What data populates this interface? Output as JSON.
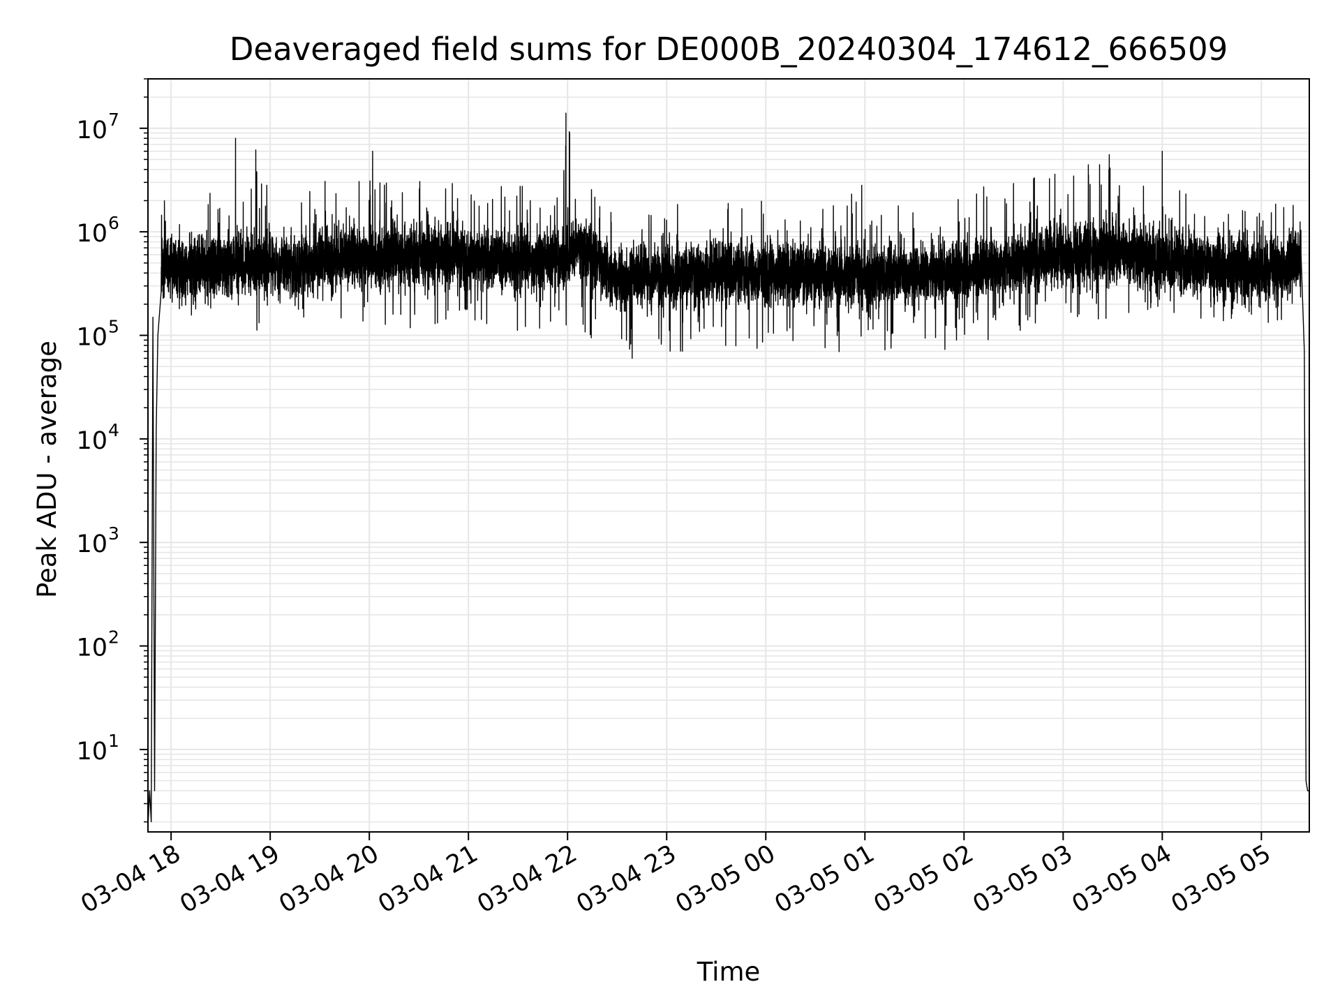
{
  "chart_data": {
    "type": "line",
    "title": "Deaveraged field sums for DE000B_20240304_174612_666509",
    "xlabel": "Time",
    "ylabel": "Peak ADU - average",
    "yscale": "log",
    "ylim": [
      1.6,
      30000000
    ],
    "xlim": [
      "2024-03-04 17:46",
      "2024-03-05 05:29"
    ],
    "grid": true,
    "grid_color": "#e6e6e6",
    "line_color": "#000000",
    "x_ticks": [
      "2024-03-04 18:00",
      "2024-03-04 19:00",
      "2024-03-04 20:00",
      "2024-03-04 21:00",
      "2024-03-04 22:00",
      "2024-03-04 23:00",
      "2024-03-05 00:00",
      "2024-03-05 01:00",
      "2024-03-05 02:00",
      "2024-03-05 03:00",
      "2024-03-05 04:00",
      "2024-03-05 05:00"
    ],
    "x_tick_labels": [
      "03-04 18",
      "03-04 19",
      "03-04 20",
      "03-04 21",
      "03-04 22",
      "03-04 23",
      "03-05 00",
      "03-05 01",
      "03-05 02",
      "03-05 03",
      "03-05 04",
      "03-05 05"
    ],
    "y_ticks": [
      10,
      100,
      1000,
      10000,
      100000,
      1000000,
      10000000
    ],
    "y_tick_labels": [
      {
        "base": "10",
        "exp": "1"
      },
      {
        "base": "10",
        "exp": "2"
      },
      {
        "base": "10",
        "exp": "3"
      },
      {
        "base": "10",
        "exp": "4"
      },
      {
        "base": "10",
        "exp": "5"
      },
      {
        "base": "10",
        "exp": "6"
      },
      {
        "base": "10",
        "exp": "7"
      }
    ],
    "series": [
      {
        "x": [
          "2024-03-04 17:46",
          "2024-03-04 17:47",
          "2024-03-04 17:48",
          "2024-03-04 17:49",
          "2024-03-04 17:50",
          "2024-03-04 17:51",
          "2024-03-04 17:52",
          "2024-03-04 17:54",
          "2024-03-04 18:00",
          "2024-03-04 18:10",
          "2024-03-04 18:20",
          "2024-03-04 18:30",
          "2024-03-04 18:40",
          "2024-03-04 18:50",
          "2024-03-04 19:00",
          "2024-03-04 19:20",
          "2024-03-04 19:40",
          "2024-03-04 20:00",
          "2024-03-04 20:20",
          "2024-03-04 20:40",
          "2024-03-04 21:00",
          "2024-03-04 21:20",
          "2024-03-04 21:40",
          "2024-03-04 21:55",
          "2024-03-04 22:00",
          "2024-03-04 22:10",
          "2024-03-04 22:30",
          "2024-03-04 23:00",
          "2024-03-04 23:30",
          "2024-03-05 00:00",
          "2024-03-05 00:30",
          "2024-03-05 01:00",
          "2024-03-05 01:30",
          "2024-03-05 02:00",
          "2024-03-05 02:30",
          "2024-03-05 03:00",
          "2024-03-05 03:30",
          "2024-03-05 04:00",
          "2024-03-05 04:30",
          "2024-03-05 05:00",
          "2024-03-05 05:15",
          "2024-03-05 05:20",
          "2024-03-05 05:24",
          "2024-03-05 05:26",
          "2024-03-05 05:27",
          "2024-03-05 05:28",
          "2024-03-05 05:29"
        ],
        "y": [
          1.8,
          4,
          2,
          150000,
          4,
          12000,
          100000,
          450000,
          480000,
          420000,
          470000,
          440000,
          500000,
          510000,
          480000,
          500000,
          550000,
          560000,
          600000,
          620000,
          550000,
          540000,
          520000,
          560000,
          600000,
          700000,
          350000,
          380000,
          420000,
          400000,
          380000,
          390000,
          380000,
          430000,
          470000,
          600000,
          650000,
          560000,
          450000,
          420000,
          430000,
          500000,
          600000,
          70000,
          5,
          4,
          4
        ],
        "min_envelope": [
          null,
          null,
          null,
          null,
          null,
          null,
          null,
          180000,
          200000,
          150000,
          160000,
          150000,
          120000,
          100000,
          180000,
          140000,
          130000,
          110000,
          120000,
          110000,
          120000,
          110000,
          100000,
          100000,
          130000,
          100000,
          55000,
          70000,
          70000,
          70000,
          60000,
          70000,
          65000,
          70000,
          100000,
          160000,
          120000,
          160000,
          140000,
          110000,
          120000,
          160000,
          200000,
          null,
          null,
          null,
          null
        ],
        "max_envelope": [
          null,
          null,
          null,
          null,
          null,
          null,
          null,
          2400000,
          2300000,
          2200000,
          2600000,
          2000000,
          3000000,
          8000000,
          2700000,
          6000000,
          2800000,
          4000000,
          3000000,
          3500000,
          3700000,
          3000000,
          2800000,
          2500000,
          14000000,
          2700000,
          2200000,
          2000000,
          1900000,
          2000000,
          2200000,
          3600000,
          2000000,
          2500000,
          3500000,
          3500000,
          6000000,
          2700000,
          2200000,
          1700000,
          2200000,
          2300000,
          1900000,
          null,
          null,
          null,
          null
        ]
      }
    ],
    "notable_spikes": [
      {
        "x": "2024-03-04 18:39",
        "y": 8000000
      },
      {
        "x": "2024-03-04 20:02",
        "y": 6000000
      },
      {
        "x": "2024-03-04 21:59",
        "y": 14000000
      },
      {
        "x": "2024-03-05 02:55",
        "y": 3600000
      },
      {
        "x": "2024-03-05 04:00",
        "y": 6000000
      }
    ]
  }
}
